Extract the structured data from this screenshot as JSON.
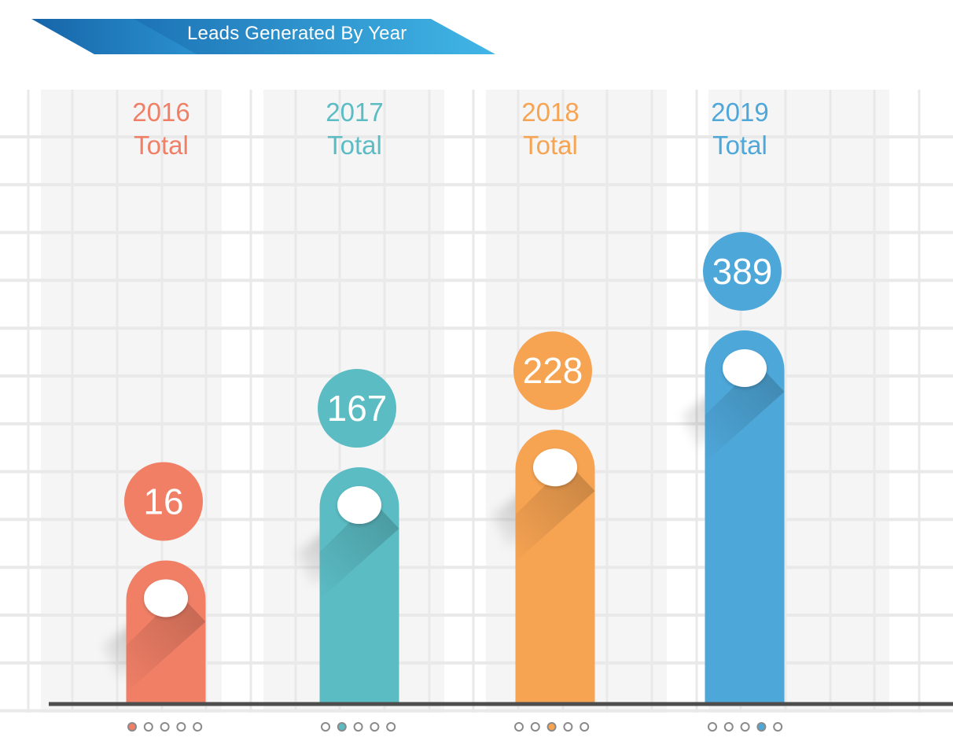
{
  "header": {
    "title": "Leads Generated By Year"
  },
  "colors": {
    "banner_dark": "#1a6fb0",
    "banner_light": "#3fb3e3",
    "grid_band": "#f5f5f5",
    "grid_line": "#e9e9e9",
    "baseline": "#4d4d4d",
    "dot_stroke": "#8a8a8a"
  },
  "chart_data": {
    "type": "bar",
    "title": "Leads Generated By Year",
    "xlabel": "",
    "ylabel": "",
    "ylim": [
      0,
      400
    ],
    "grid": true,
    "categories": [
      "2016",
      "2017",
      "2018",
      "2019"
    ],
    "category_sublabel": "Total",
    "values": [
      16,
      167,
      228,
      389
    ],
    "value_labels": [
      "16",
      "167",
      "228",
      "389"
    ],
    "colors": [
      "#f07f66",
      "#5bbcc4",
      "#f6a352",
      "#4ea7d9"
    ],
    "pager": {
      "dots_per_group": 5,
      "active_index": [
        0,
        1,
        2,
        3
      ]
    }
  }
}
